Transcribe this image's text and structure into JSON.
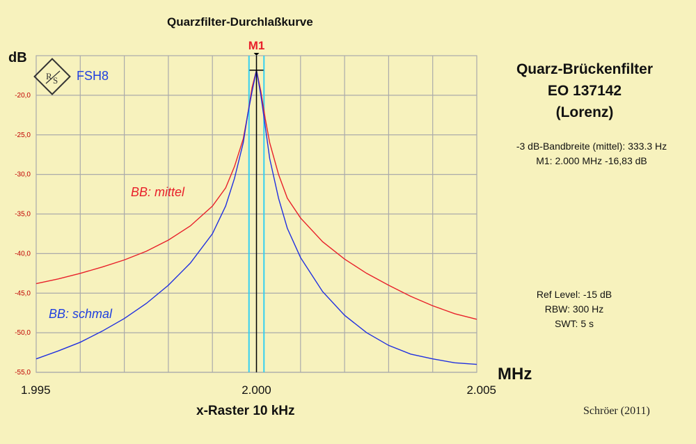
{
  "title": "Quarzfilter-Durchlaßkurve",
  "y_unit": "dB",
  "x_unit": "MHz",
  "x_caption": "x-Raster 10 kHz",
  "logo_text": "FSH8",
  "filter_title": [
    "Quarz-Brückenfilter",
    "EO 137142",
    "(Lorenz)"
  ],
  "measurements": [
    "-3 dB-Bandbreite (mittel): 333.3 Hz",
    "M1: 2.000 MHz  -16,83 dB"
  ],
  "settings": [
    "Ref Level: -15 dB",
    "RBW: 300 Hz",
    "SWT: 5 s"
  ],
  "credit": "Schröer (2011)",
  "colors": {
    "background": "#f7f2bd",
    "grid": "#aaaaaa",
    "mittel": "#e8202a",
    "schmal": "#1f2fe0",
    "marker_lines": "#35d0f0"
  },
  "chart_data": {
    "type": "line",
    "xlim": [
      1.995,
      2.005
    ],
    "ylim": [
      -55,
      -15
    ],
    "xticks": [
      1.995,
      2.0,
      2.005
    ],
    "xtick_labels": [
      "1.995",
      "2.000",
      "2.005"
    ],
    "yticks": [
      -20,
      -25,
      -30,
      -35,
      -40,
      -45,
      -50,
      -55
    ],
    "ytick_labels": [
      "-20,0",
      "-25,0",
      "-30,0",
      "-35,0",
      "-40,0",
      "-45,0",
      "-50,0",
      "-55,0"
    ],
    "grid": true,
    "marker": {
      "label": "M1",
      "x": 2.0,
      "y": -16.83
    },
    "bandwidth_lines": [
      1.99983,
      2.00017
    ],
    "series": [
      {
        "name": "BB: mittel",
        "color": "#e8202a",
        "x": [
          1.995,
          1.9955,
          1.996,
          1.9965,
          1.997,
          1.9975,
          1.998,
          1.9985,
          1.999,
          1.9993,
          1.9995,
          1.9997,
          1.9998,
          1.9999,
          2.0,
          2.0001,
          2.0002,
          2.0003,
          2.0005,
          2.0007,
          2.001,
          2.0015,
          2.002,
          2.0025,
          2.003,
          2.0035,
          2.004,
          2.0045,
          2.005
        ],
        "y": [
          -43.8,
          -43.2,
          -42.5,
          -41.7,
          -40.8,
          -39.7,
          -38.3,
          -36.5,
          -34.0,
          -31.7,
          -29.0,
          -25.5,
          -22.5,
          -19.0,
          -16.83,
          -19.5,
          -23.0,
          -26.0,
          -30.0,
          -33.0,
          -35.5,
          -38.5,
          -40.7,
          -42.5,
          -44.0,
          -45.4,
          -46.6,
          -47.6,
          -48.3
        ]
      },
      {
        "name": "BB: schmal",
        "color": "#1f2fe0",
        "x": [
          1.995,
          1.9955,
          1.996,
          1.9965,
          1.997,
          1.9975,
          1.998,
          1.9985,
          1.999,
          1.9993,
          1.9995,
          1.9997,
          1.9998,
          1.9999,
          2.0,
          2.0001,
          2.0002,
          2.0003,
          2.0005,
          2.0007,
          2.001,
          2.0015,
          2.002,
          2.0025,
          2.003,
          2.0035,
          2.004,
          2.0045,
          2.005
        ],
        "y": [
          -53.3,
          -52.3,
          -51.2,
          -49.8,
          -48.2,
          -46.3,
          -44.0,
          -41.2,
          -37.5,
          -34.0,
          -30.5,
          -26.0,
          -22.5,
          -19.5,
          -16.83,
          -20.0,
          -24.0,
          -28.0,
          -33.0,
          -36.8,
          -40.5,
          -44.8,
          -47.8,
          -50.0,
          -51.6,
          -52.7,
          -53.3,
          -53.8,
          -54.0
        ]
      }
    ],
    "series_labels_shown": [
      "BB: mittel",
      "BB: schmal"
    ]
  }
}
